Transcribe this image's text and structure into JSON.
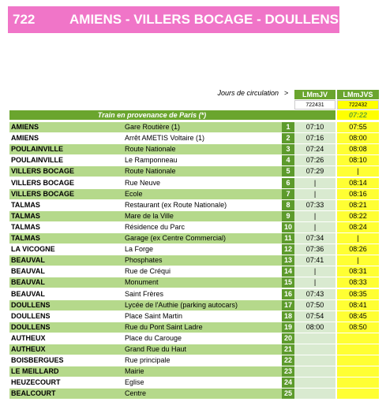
{
  "header": {
    "line": "722",
    "title": "AMIENS - VILLERS BOCAGE - DOULLENS"
  },
  "table": {
    "days_label": "Jours de circulation",
    "arrow": ">",
    "columns": [
      {
        "days": "LMmJV",
        "code": "722431"
      },
      {
        "days": "LMmJVS",
        "code": "722432"
      }
    ],
    "origin": {
      "label": "Train en provenance de Paris (*)",
      "times": [
        null,
        "07:22"
      ]
    },
    "rows": [
      [
        "AMIENS",
        "Gare Routière (1)",
        1,
        "07:10",
        "07:55"
      ],
      [
        "AMIENS",
        "Arrêt AMETIS Voltaire  (1)",
        2,
        "07:16",
        "08:00"
      ],
      [
        "POULAINVILLE",
        "Route Nationale",
        3,
        "07:24",
        "08:08"
      ],
      [
        "POULAINVILLE",
        "Le Ramponneau",
        4,
        "07:26",
        "08:10"
      ],
      [
        "VILLERS BOCAGE",
        "Route Nationale",
        5,
        "07:29",
        "|"
      ],
      [
        "VILLERS BOCAGE",
        "Rue Neuve",
        6,
        "|",
        "08:14"
      ],
      [
        "VILLERS BOCAGE",
        "Ecole",
        7,
        "|",
        "08:16"
      ],
      [
        "TALMAS",
        "Restaurant (ex Route Nationale)",
        8,
        "07:33",
        "08:21"
      ],
      [
        "TALMAS",
        "Mare de la Ville",
        9,
        "|",
        "08:22"
      ],
      [
        "TALMAS",
        "Résidence du Parc",
        10,
        "|",
        "08:24"
      ],
      [
        "TALMAS",
        "Garage (ex Centre Commercial)",
        11,
        "07:34",
        "|"
      ],
      [
        "LA VICOGNE",
        "La Forge",
        12,
        "07:36",
        "08:26"
      ],
      [
        "BEAUVAL",
        "Phosphates",
        13,
        "07:41",
        "|"
      ],
      [
        "BEAUVAL",
        "Rue de Créqui",
        14,
        "|",
        "08:31"
      ],
      [
        "BEAUVAL",
        "Monument",
        15,
        "|",
        "08:33"
      ],
      [
        "BEAUVAL",
        "Saint Frères",
        16,
        "07:43",
        "08:35"
      ],
      [
        "DOULLENS",
        "Lycée de l'Authie (parking autocars)",
        17,
        "07:50",
        "08:41"
      ],
      [
        "DOULLENS",
        "Place Saint Martin",
        18,
        "07:54",
        "08:45"
      ],
      [
        "DOULLENS",
        "Rue du Pont Saint Ladre",
        19,
        "08:00",
        "08:50"
      ],
      [
        "AUTHEUX",
        "Place du Carouge",
        20,
        null,
        null
      ],
      [
        "AUTHEUX",
        "Grand Rue du Haut",
        21,
        null,
        null
      ],
      [
        "BOISBERGUES",
        "Rue principale",
        22,
        null,
        null
      ],
      [
        "LE MEILLARD",
        "Mairie",
        23,
        null,
        null
      ],
      [
        "HEUZECOURT",
        "Eglise",
        24,
        null,
        null
      ],
      [
        "BEALCOURT",
        "Centre",
        25,
        null,
        null
      ]
    ]
  }
}
